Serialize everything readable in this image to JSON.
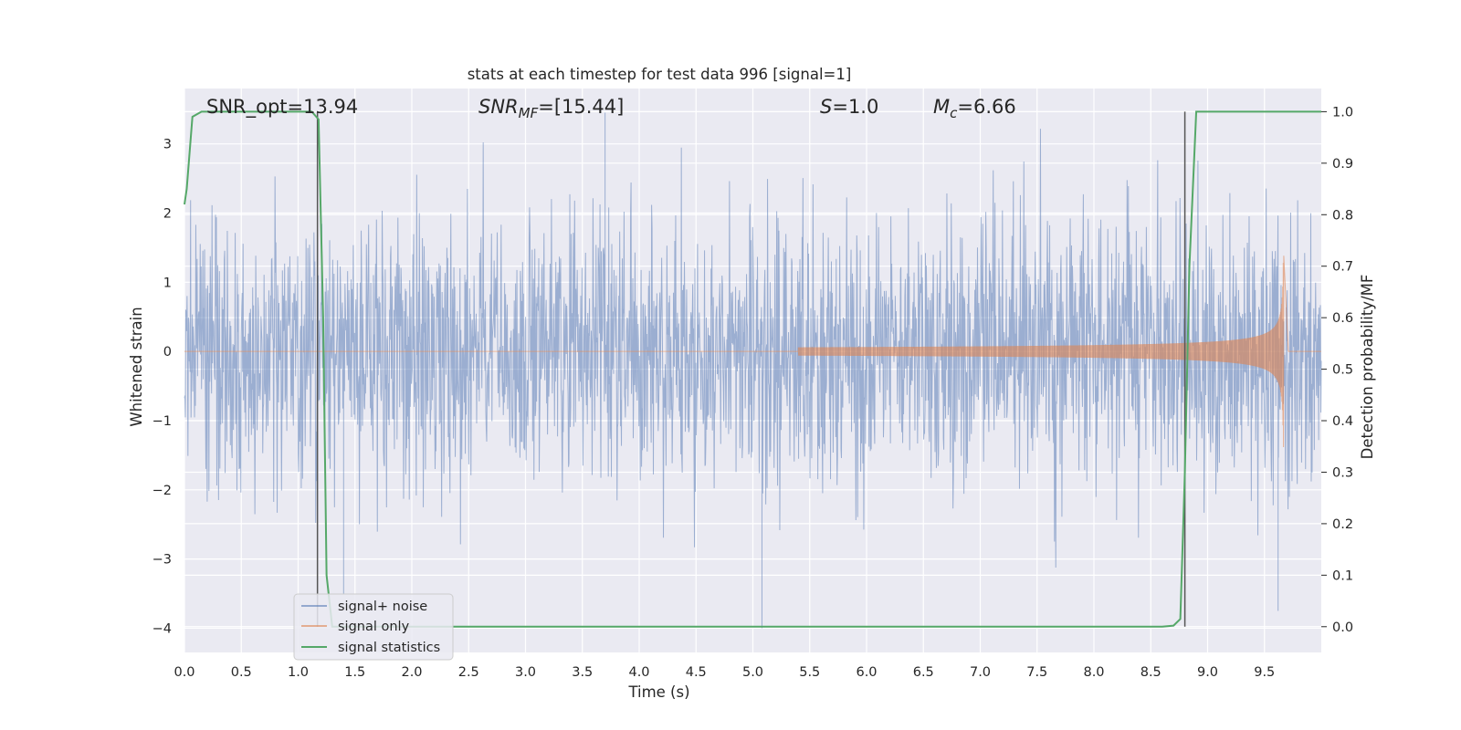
{
  "chart_data": {
    "type": "line",
    "title": "stats at each timestep for test data 996 [signal=1]",
    "xlabel": "Time (s)",
    "ylabel": "Whitened strain",
    "y2label": "Detection probability/MF",
    "xlim": [
      0.0,
      10.0
    ],
    "ylim": [
      -4.35,
      3.8
    ],
    "y2lim": [
      -0.05,
      1.045
    ],
    "xticks": [
      "0.0",
      "0.5",
      "1.0",
      "1.5",
      "2.0",
      "2.5",
      "3.0",
      "3.5",
      "4.0",
      "4.5",
      "5.0",
      "5.5",
      "6.0",
      "6.5",
      "7.0",
      "7.5",
      "8.0",
      "8.5",
      "9.0",
      "9.5"
    ],
    "yticks": [
      "3",
      "2",
      "1",
      "0",
      "−1",
      "−2",
      "−3",
      "−4"
    ],
    "y2ticks": [
      "1.0",
      "0.9",
      "0.8",
      "0.7",
      "0.6",
      "0.5",
      "0.4",
      "0.3",
      "0.2",
      "0.1",
      "0.0"
    ],
    "grid": true,
    "annotations": [
      {
        "text": "SNR_opt=13.94"
      },
      {
        "prefix": "SNR",
        "sub": "MF",
        "suffix": "=[15.44]"
      },
      {
        "prefix": "S",
        "sub": "",
        "suffix": "=1.0"
      },
      {
        "prefix": "M",
        "sub": "c",
        "suffix": "=6.66"
      }
    ],
    "vlines_x": [
      1.17,
      8.8
    ],
    "legend_placement": "lower-left",
    "series": [
      {
        "name": "signal+ noise",
        "color": "#4c72b0",
        "description_axis": "left",
        "amplitude_std": 0.95,
        "peaks": [
          [
            3.7,
            3.45
          ],
          [
            5.08,
            -4.0
          ],
          [
            1.4,
            -3.5
          ],
          [
            9.62,
            -3.75
          ]
        ]
      },
      {
        "name": "signal only",
        "color": "#dd8452",
        "description_axis": "left",
        "chirp_start": 5.4,
        "merger": 9.67,
        "peak_amplitude": 1.5
      },
      {
        "name": "signal statistics",
        "color": "#55a868",
        "axis": "right",
        "x": [
          0.0,
          0.02,
          0.07,
          0.15,
          1.12,
          1.18,
          1.22,
          1.25,
          1.3,
          8.6,
          8.7,
          8.76,
          8.8,
          8.84,
          8.9,
          9.0,
          10.0
        ],
        "y": [
          0.82,
          0.85,
          0.99,
          1.0,
          1.0,
          0.985,
          0.6,
          0.1,
          0.0,
          0.0,
          0.002,
          0.015,
          0.3,
          0.7,
          1.0,
          1.0,
          1.0
        ]
      }
    ]
  }
}
